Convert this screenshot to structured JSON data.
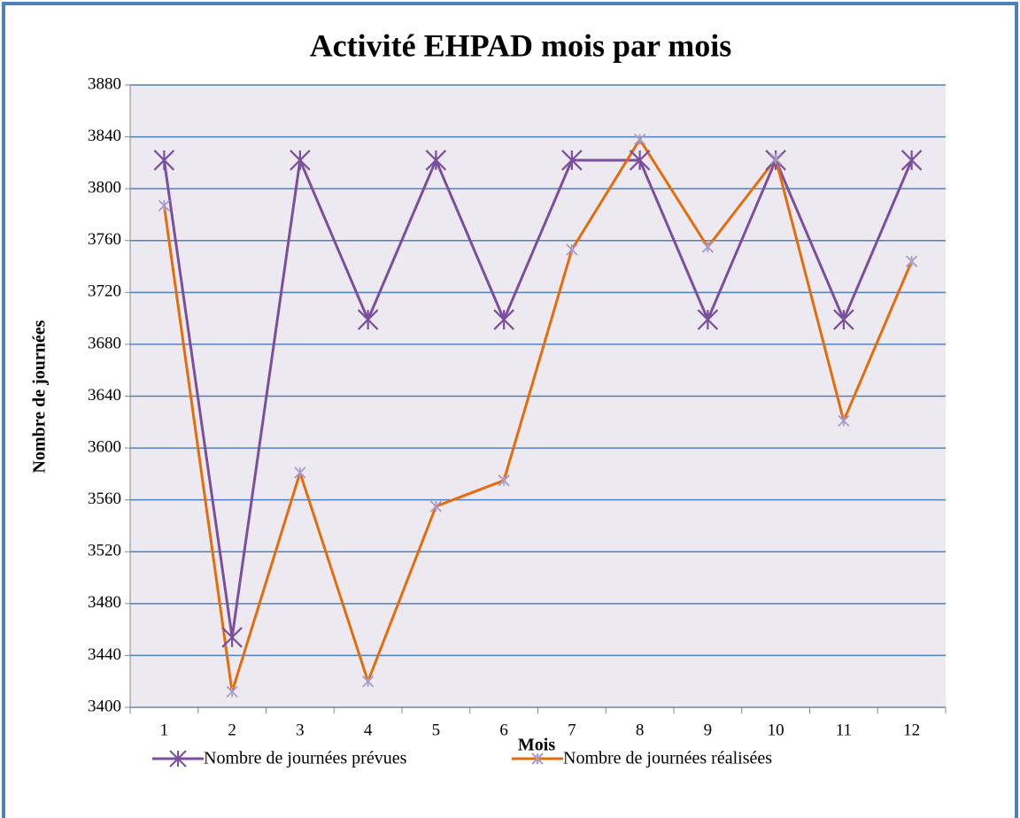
{
  "chart_data": {
    "type": "line",
    "title": "Activité EHPAD mois par mois",
    "x_label": "Mois",
    "y_label": "Nombre de journées",
    "categories": [
      "1",
      "2",
      "3",
      "4",
      "5",
      "6",
      "7",
      "8",
      "9",
      "10",
      "11",
      "12"
    ],
    "series": [
      {
        "name": "Nombre de journées prévues",
        "color": "#7b4f9d",
        "marker_color": "#7b4f9d",
        "values": [
          3822,
          3454,
          3822,
          3699,
          3822,
          3699,
          3822,
          3822,
          3699,
          3822,
          3699,
          3822
        ]
      },
      {
        "name": "Nombre de journées réalisées",
        "color": "#e46c0a",
        "marker_color": "#a99bc7",
        "values": [
          3787,
          3412,
          3581,
          3420,
          3555,
          3575,
          3753,
          3838,
          3755,
          3823,
          3621,
          3744
        ]
      }
    ],
    "ylim": [
      3400,
      3880
    ],
    "yticks": [
      3400,
      3440,
      3480,
      3520,
      3560,
      3600,
      3640,
      3680,
      3720,
      3760,
      3800,
      3840,
      3880
    ],
    "grid": true,
    "grid_color": "#4f81bd",
    "plot_background": "#ece9f1",
    "legend": "bottom"
  }
}
